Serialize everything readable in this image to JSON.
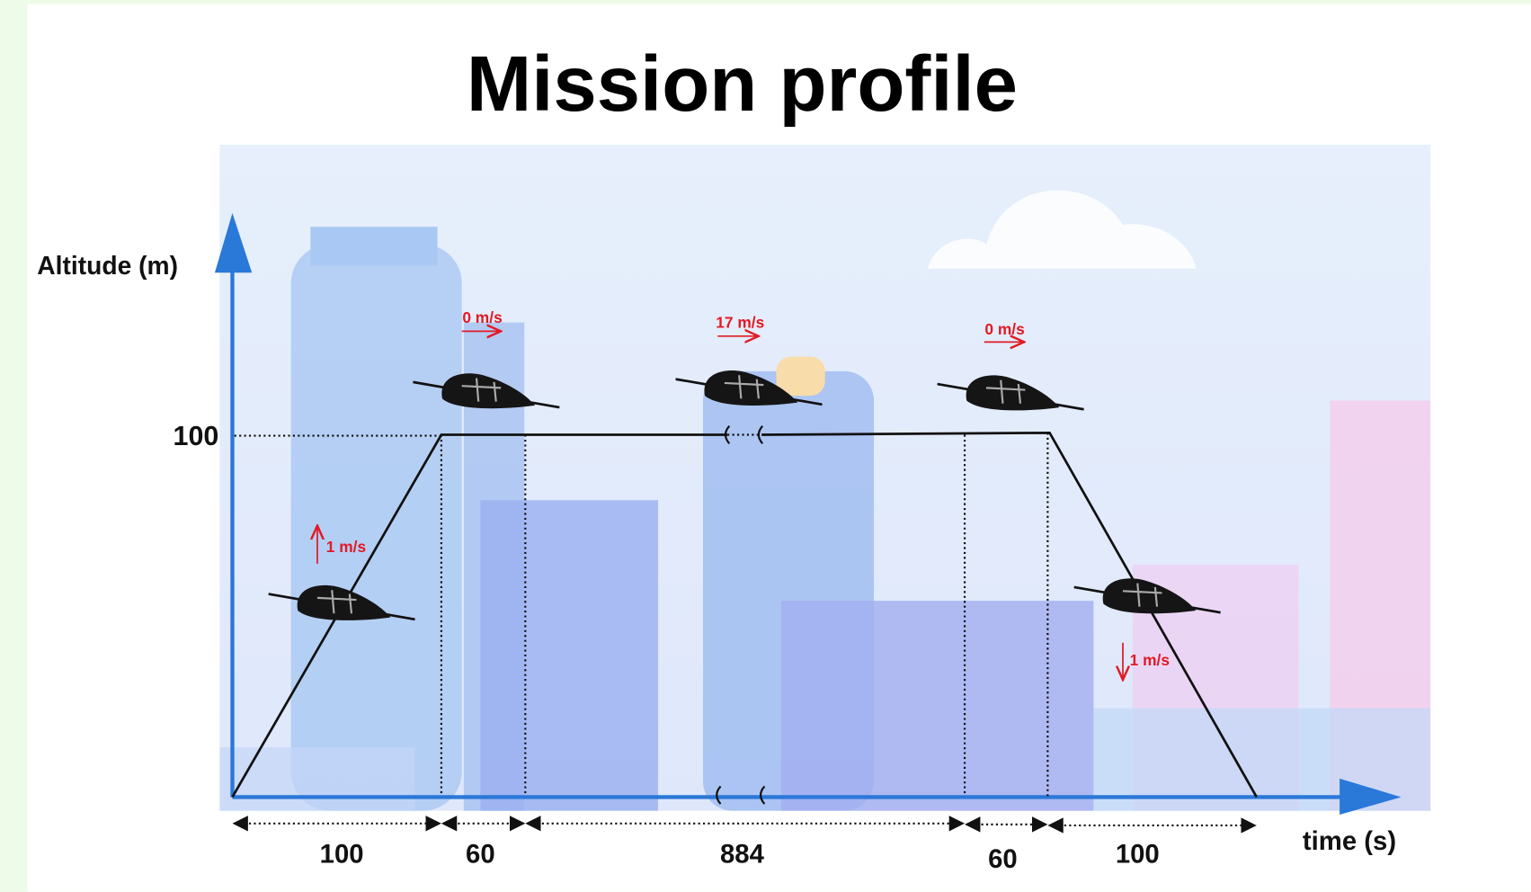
{
  "title": "Mission profile",
  "y_axis": {
    "label": "Altitude (m)",
    "tick": "100"
  },
  "x_axis": {
    "label": "time (s)"
  },
  "phases": [
    {
      "duration": "100",
      "speed": "1 m/s"
    },
    {
      "duration": "60",
      "speed": "0 m/s"
    },
    {
      "duration": "884",
      "speed": "17 m/s"
    },
    {
      "duration": "60",
      "speed": "0 m/s"
    },
    {
      "duration": "100",
      "speed": "1 m/s"
    }
  ]
}
